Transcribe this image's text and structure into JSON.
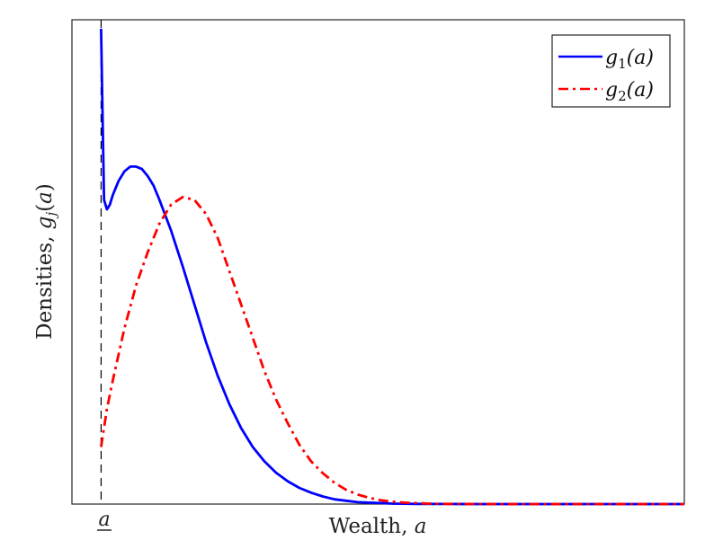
{
  "chart_data": {
    "type": "line",
    "title": "",
    "xlabel": "Wealth, a",
    "ylabel": "Densities, g_j(a)",
    "x_tick_labels": [
      {
        "x": 0,
        "label": "a",
        "underline": true
      }
    ],
    "y_tick_labels": [],
    "xlim": [
      -0.05,
      1.0
    ],
    "ylim": [
      0,
      1.0
    ],
    "grid": false,
    "legend_position": "top-right",
    "borrowing_limit_line": {
      "x": 0,
      "style": "dashed",
      "color": "#000000"
    },
    "series": [
      {
        "name": "g_1(a)",
        "legend_base": "g",
        "legend_sub": "1",
        "legend_arg": "(a)",
        "color": "#0000ff",
        "style": "solid",
        "x": [
          0.0,
          0.005,
          0.01,
          0.015,
          0.02,
          0.03,
          0.04,
          0.05,
          0.06,
          0.07,
          0.08,
          0.09,
          0.1,
          0.12,
          0.14,
          0.16,
          0.18,
          0.2,
          0.22,
          0.24,
          0.26,
          0.28,
          0.3,
          0.32,
          0.34,
          0.36,
          0.38,
          0.4,
          0.42,
          0.44,
          0.46,
          0.48,
          0.5,
          0.52,
          0.54,
          0.56,
          0.6,
          0.65,
          0.7,
          0.8,
          0.9,
          1.0
        ],
        "y": [
          1.0,
          0.64,
          0.62,
          0.63,
          0.65,
          0.68,
          0.7,
          0.71,
          0.71,
          0.705,
          0.69,
          0.67,
          0.64,
          0.575,
          0.5,
          0.42,
          0.34,
          0.27,
          0.21,
          0.16,
          0.12,
          0.09,
          0.066,
          0.048,
          0.034,
          0.024,
          0.016,
          0.01,
          0.007,
          0.004,
          0.003,
          0.002,
          0.001,
          0.0007,
          0.0004,
          0.0002,
          0.0001,
          0.0,
          0.0,
          0.0,
          0.0,
          0.0
        ]
      },
      {
        "name": "g_2(a)",
        "legend_base": "g",
        "legend_sub": "2",
        "legend_arg": "(a)",
        "color": "#ff0000",
        "style": "dashdot",
        "x": [
          0.0,
          0.01,
          0.02,
          0.04,
          0.06,
          0.08,
          0.1,
          0.12,
          0.14,
          0.16,
          0.18,
          0.2,
          0.22,
          0.24,
          0.26,
          0.28,
          0.3,
          0.32,
          0.34,
          0.36,
          0.38,
          0.4,
          0.42,
          0.44,
          0.46,
          0.48,
          0.5,
          0.52,
          0.54,
          0.56,
          0.58,
          0.6,
          0.65,
          0.7,
          0.8,
          0.9,
          1.0
        ],
        "y": [
          0.12,
          0.2,
          0.26,
          0.37,
          0.46,
          0.53,
          0.59,
          0.63,
          0.646,
          0.64,
          0.61,
          0.56,
          0.49,
          0.42,
          0.35,
          0.28,
          0.22,
          0.17,
          0.125,
          0.09,
          0.065,
          0.045,
          0.03,
          0.02,
          0.013,
          0.008,
          0.005,
          0.003,
          0.002,
          0.001,
          0.0006,
          0.0003,
          0.0001,
          0.0,
          0.0,
          0.0,
          0.0
        ]
      }
    ]
  }
}
